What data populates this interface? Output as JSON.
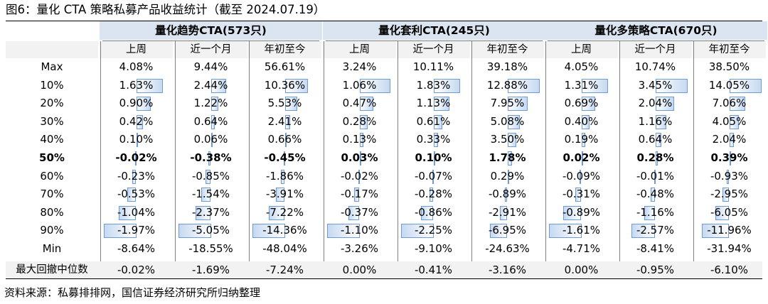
{
  "title": "图6：量化 CTA 策略私募产品收益统计（截至 2024.07.19）",
  "groups": [
    {
      "label": "量化趋势CTA(573只)"
    },
    {
      "label": "量化套利CTA(245只)"
    },
    {
      "label": "量化多策略CTA(670只)"
    }
  ],
  "subheaders": [
    "上周",
    "近一个月",
    "年初至今",
    "上周",
    "近一个月",
    "年初至今",
    "上周",
    "近一个月",
    "年初至今"
  ],
  "rows": [
    {
      "label": "Max",
      "bold": false,
      "values": [
        "4.08%",
        "9.44%",
        "56.61%",
        "3.24%",
        "10.11%",
        "39.18%",
        "4.05%",
        "10.74%",
        "38.50%"
      ]
    },
    {
      "label": "10%",
      "bold": false,
      "values": [
        "1.63%",
        "2.44%",
        "10.36%",
        "1.06%",
        "1.83%",
        "12.88%",
        "1.31%",
        "3.45%",
        "14.05%"
      ]
    },
    {
      "label": "20%",
      "bold": false,
      "values": [
        "0.90%",
        "1.22%",
        "5.53%",
        "0.47%",
        "1.13%",
        "7.95%",
        "0.69%",
        "2.04%",
        "7.06%"
      ]
    },
    {
      "label": "30%",
      "bold": false,
      "values": [
        "0.42%",
        "0.64%",
        "2.41%",
        "0.28%",
        "0.61%",
        "5.08%",
        "0.40%",
        "1.16%",
        "4.05%"
      ]
    },
    {
      "label": "40%",
      "bold": false,
      "values": [
        "0.10%",
        "0.06%",
        "0.66%",
        "0.13%",
        "0.33%",
        "3.50%",
        "0.19%",
        "0.64%",
        "2.04%"
      ]
    },
    {
      "label": "50%",
      "bold": true,
      "values": [
        "-0.02%",
        "-0.38%",
        "-0.45%",
        "0.03%",
        "0.10%",
        "1.78%",
        "0.02%",
        "0.28%",
        "0.39%"
      ]
    },
    {
      "label": "60%",
      "bold": false,
      "values": [
        "-0.23%",
        "-0.85%",
        "-1.86%",
        "-0.02%",
        "-0.07%",
        "0.29%",
        "-0.09%",
        "-0.01%",
        "-0.93%"
      ]
    },
    {
      "label": "70%",
      "bold": false,
      "values": [
        "-0.53%",
        "-1.54%",
        "-3.91%",
        "-0.17%",
        "-0.28%",
        "-0.89%",
        "-0.31%",
        "-0.48%",
        "-2.95%"
      ]
    },
    {
      "label": "80%",
      "bold": false,
      "values": [
        "-1.04%",
        "-2.37%",
        "-7.22%",
        "-0.37%",
        "-0.86%",
        "-2.91%",
        "-0.89%",
        "-1.16%",
        "-6.05%"
      ]
    },
    {
      "label": "90%",
      "bold": false,
      "values": [
        "-1.97%",
        "-5.05%",
        "-14.36%",
        "-1.10%",
        "-2.25%",
        "-6.95%",
        "-1.61%",
        "-2.57%",
        "-11.96%"
      ]
    },
    {
      "label": "Min",
      "bold": false,
      "values": [
        "-8.64%",
        "-18.55%",
        "-48.04%",
        "-3.26%",
        "-9.10%",
        "-24.63%",
        "-4.71%",
        "-8.41%",
        "-31.94%"
      ]
    }
  ],
  "drawdown": {
    "label": "最大回撤中位数",
    "values": [
      "-0.02%",
      "-1.69%",
      "-7.24%",
      "0.00%",
      "-0.41%",
      "-3.16%",
      "0.00%",
      "-0.95%",
      "-6.10%"
    ]
  },
  "source": "资料来源：私募排排网，国信证券经济研究所归纳整理",
  "colors": {
    "header_fill": "#dbe5f1",
    "subheader_fill": "#f2f2f2",
    "databar_border": "#6d9bd5",
    "databar_fill": "#c6d9f1"
  }
}
